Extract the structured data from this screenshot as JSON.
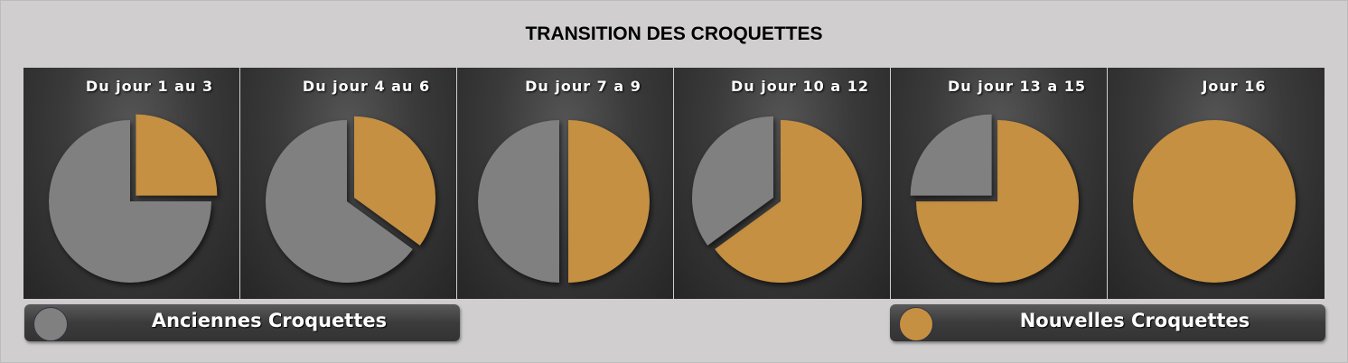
{
  "colors": {
    "anciennes": "#808080",
    "nouvelles": "#c59042"
  },
  "chart_data": {
    "type": "pie",
    "title": "TRANSITION DES CROQUETTES",
    "legend": {
      "placement": "bottom",
      "entries": [
        "Anciennes Croquettes",
        "Nouvelles Croquettes"
      ]
    },
    "charts": [
      {
        "title": "Du jour 1 au 3",
        "anciennes": 75,
        "nouvelles": 25
      },
      {
        "title": "Du jour 4 au 6",
        "anciennes": 65,
        "nouvelles": 35
      },
      {
        "title": "Du jour 7 a 9",
        "anciennes": 50,
        "nouvelles": 50
      },
      {
        "title": "Du jour 10 a 12",
        "anciennes": 35,
        "nouvelles": 65
      },
      {
        "title": "Du jour 13 a 15",
        "anciennes": 25,
        "nouvelles": 75
      },
      {
        "title": "Jour 16",
        "anciennes": 0,
        "nouvelles": 100
      }
    ]
  }
}
